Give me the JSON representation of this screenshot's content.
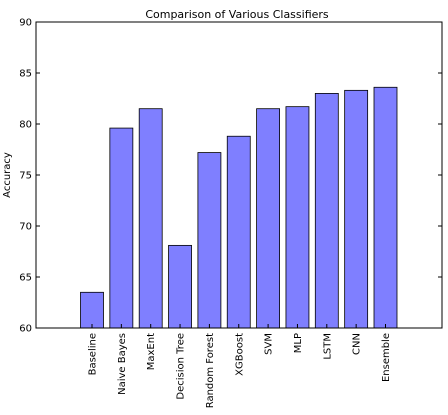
{
  "chart_data": {
    "type": "bar",
    "title": "Comparison of Various Classifiers",
    "xlabel": "",
    "ylabel": "Accuracy",
    "categories": [
      "Baseline",
      "Naive Bayes",
      "MaxEnt",
      "Decision Tree",
      "Random Forest",
      "XGBoost",
      "SVM",
      "MLP",
      "LSTM",
      "CNN",
      "Ensemble"
    ],
    "values": [
      63.5,
      79.6,
      81.5,
      68.1,
      77.2,
      78.8,
      81.5,
      81.7,
      83.0,
      83.3,
      83.6
    ],
    "ylim": [
      60,
      90
    ],
    "yticks": [
      60,
      65,
      70,
      75,
      80,
      85,
      90
    ],
    "grid": false,
    "bar_color": "#7f7fff",
    "bar_edge_color": "#000000"
  }
}
